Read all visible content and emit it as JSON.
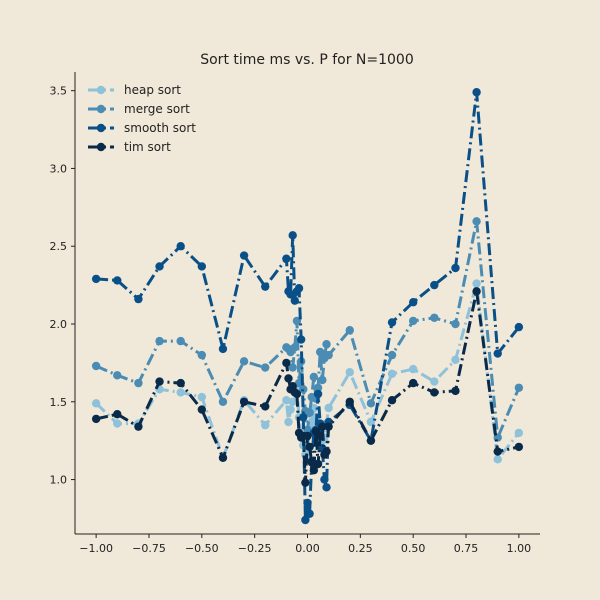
{
  "chart_data": {
    "type": "line",
    "title": "Sort time ms vs. P for N=1000",
    "xlabel": "",
    "ylabel": "",
    "xlim": [
      -1.1,
      1.1
    ],
    "ylim": [
      0.65,
      3.62
    ],
    "xticks": [
      -1.0,
      -0.75,
      -0.5,
      -0.25,
      0.0,
      0.25,
      0.5,
      0.75,
      1.0
    ],
    "xtick_labels": [
      "−1.00",
      "−0.75",
      "−0.50",
      "−0.25",
      "0.00",
      "0.25",
      "0.50",
      "0.75",
      "1.00"
    ],
    "yticks": [
      1.0,
      1.5,
      2.0,
      2.5,
      3.0,
      3.5
    ],
    "ytick_labels": [
      "1.0",
      "1.5",
      "2.0",
      "2.5",
      "3.0",
      "3.5"
    ],
    "grid": false,
    "legend_position": "top-left",
    "x": [
      -1.0,
      -0.9,
      -0.8,
      -0.7,
      -0.6,
      -0.5,
      -0.4,
      -0.3,
      -0.2,
      -0.1,
      -0.09,
      -0.08,
      -0.07,
      -0.06,
      -0.05,
      -0.04,
      -0.03,
      -0.02,
      -0.01,
      0.0,
      0.01,
      0.02,
      0.03,
      0.04,
      0.05,
      0.06,
      0.07,
      0.08,
      0.09,
      0.1,
      0.2,
      0.3,
      0.4,
      0.5,
      0.6,
      0.7,
      0.8,
      0.9,
      1.0
    ],
    "series": [
      {
        "name": "heap sort",
        "color": "#8ec1da",
        "values": [
          1.49,
          1.36,
          1.36,
          1.58,
          1.56,
          1.53,
          1.14,
          1.51,
          1.35,
          1.51,
          1.37,
          1.45,
          1.5,
          1.57,
          1.59,
          1.4,
          1.28,
          1.22,
          1.16,
          1.19,
          1.33,
          1.37,
          1.46,
          1.4,
          1.31,
          1.32,
          1.25,
          1.27,
          1.36,
          1.46,
          1.69,
          1.37,
          1.68,
          1.71,
          1.63,
          1.77,
          2.26,
          1.13,
          1.3
        ]
      },
      {
        "name": "merge sort",
        "color": "#4a8cb3",
        "values": [
          1.73,
          1.67,
          1.62,
          1.89,
          1.89,
          1.8,
          1.5,
          1.76,
          1.72,
          1.85,
          1.84,
          1.82,
          1.72,
          1.85,
          2.02,
          1.62,
          1.76,
          1.58,
          1.44,
          1.32,
          1.43,
          1.53,
          1.66,
          1.52,
          1.59,
          1.82,
          1.64,
          1.78,
          1.87,
          1.8,
          1.96,
          1.49,
          1.8,
          2.02,
          2.04,
          2.0,
          2.66,
          1.27,
          1.59
        ]
      },
      {
        "name": "smooth sort",
        "color": "#0a5088",
        "values": [
          2.29,
          2.28,
          2.16,
          2.37,
          2.5,
          2.37,
          1.84,
          2.44,
          2.24,
          2.42,
          2.21,
          2.19,
          2.57,
          2.15,
          2.21,
          2.23,
          1.9,
          1.4,
          0.74,
          0.85,
          0.78,
          1.12,
          1.3,
          1.32,
          1.55,
          1.36,
          1.2,
          1.0,
          0.95,
          1.37,
          1.48,
          1.25,
          2.01,
          2.14,
          2.25,
          2.36,
          3.49,
          1.81,
          1.98
        ]
      },
      {
        "name": "tim sort",
        "color": "#0a2a4a",
        "values": [
          1.39,
          1.42,
          1.34,
          1.63,
          1.62,
          1.45,
          1.14,
          1.5,
          1.47,
          1.75,
          1.65,
          1.58,
          1.6,
          1.56,
          1.55,
          1.3,
          1.27,
          1.28,
          0.98,
          1.28,
          1.21,
          1.11,
          1.06,
          1.31,
          1.1,
          1.28,
          1.34,
          1.16,
          1.18,
          1.34,
          1.5,
          1.25,
          1.51,
          1.62,
          1.56,
          1.57,
          2.21,
          1.18,
          1.21
        ]
      }
    ]
  }
}
